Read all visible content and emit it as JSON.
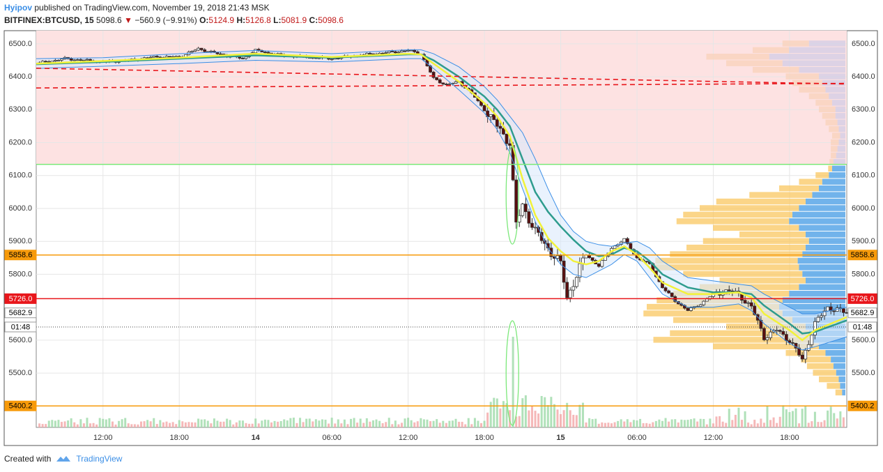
{
  "header": {
    "author": "Hyipov",
    "published_text": "published on TradingView.com, November 19, 2018 21:43 MSK",
    "symbol": "BITFINEX:BTCUSD, 15",
    "last": "5098.6",
    "change": "−560.9 (−9.91%)",
    "o_label": "O:",
    "o": "5124.9",
    "h_label": "H:",
    "h": "5126.8",
    "l_label": "L:",
    "l": "5081.9",
    "c_label": "C:",
    "c": "5098.6"
  },
  "footer": {
    "created_with": "Created with",
    "brand": "TradingView"
  },
  "colors": {
    "up": "#ffffff",
    "down": "#5a0f0f",
    "ema_fast": "#f2f23a",
    "ema_slow": "#2e9c8e",
    "band": "#3a8ee6",
    "zone": "#fde2e2",
    "profile_buy": "#f9c760",
    "profile_sell": "#58a6e8",
    "orange_level": "#f79a0a",
    "red_level": "#e8161b",
    "green_level": "#7ce87a"
  },
  "chart_data": {
    "type": "candlestick",
    "y_ticks": [
      6500,
      6400,
      6300,
      6200,
      6100,
      6000,
      5900,
      5800,
      5600,
      5500
    ],
    "y_tick_labels": [
      "6500.0",
      "6400.0",
      "6300.0",
      "6200.0",
      "6100.0",
      "6000.0",
      "5900.0",
      "5800.0",
      "5600.0",
      "5500.0"
    ],
    "x_labels": [
      "12:00",
      "18:00",
      "14",
      "06:00",
      "12:00",
      "18:00",
      "15",
      "06:00",
      "12:00",
      "18:00"
    ],
    "x_label_bold": [
      false,
      false,
      true,
      false,
      false,
      false,
      true,
      false,
      false,
      false
    ],
    "x_label_hours": [
      12,
      18,
      24,
      30,
      36,
      42,
      48,
      54,
      60,
      66
    ],
    "x_range_hours": [
      6.75,
      70.5
    ],
    "y_range": [
      5335,
      6540
    ],
    "price_badges": [
      {
        "text": "5858.6",
        "value": 5858.6,
        "color": "#f79a0a",
        "text_color": "#000000"
      },
      {
        "text": "5726.0",
        "value": 5726.0,
        "color": "#e8161b",
        "text_color": "#ffffff"
      },
      {
        "text": "5682.9",
        "value": 5682.9,
        "color": "#ffffff",
        "text_color": "#000000"
      },
      {
        "text": "01:48",
        "value": 5640,
        "color": "#ffffff",
        "text_color": "#000000"
      },
      {
        "text": "5400.2",
        "value": 5400.2,
        "color": "#f79a0a",
        "text_color": "#000000"
      }
    ],
    "levels": [
      {
        "name": "resistance-zone-bottom",
        "value": 6134,
        "color": "#7ce87a"
      },
      {
        "name": "orange-level",
        "value": 5858.6,
        "color": "#f79a0a"
      },
      {
        "name": "red-level",
        "value": 5726.0,
        "color": "#e8161b"
      },
      {
        "name": "orange-level-low",
        "value": 5400.2,
        "color": "#f79a0a"
      }
    ],
    "zone": {
      "from": 6134,
      "to": 6540
    },
    "trendlines": [
      {
        "x": [
          6.75,
          70.5
        ],
        "y": [
          6426,
          6378
        ]
      },
      {
        "x": [
          6.75,
          70.5
        ],
        "y": [
          6366,
          6380
        ]
      }
    ],
    "price_path": {
      "x": [
        6.75,
        9,
        12,
        14,
        16,
        18,
        19.5,
        21,
        23,
        24,
        26,
        28,
        30,
        32,
        34,
        36,
        37,
        38,
        39,
        40,
        41,
        42,
        43,
        44,
        44.5,
        45,
        46,
        47,
        48,
        48.5,
        49,
        50,
        51,
        52,
        53,
        54,
        55,
        56,
        57,
        58,
        59,
        60,
        61,
        62,
        63,
        64,
        65,
        66,
        67,
        68,
        69,
        70.5
      ],
      "y": [
        6440,
        6455,
        6445,
        6450,
        6460,
        6460,
        6485,
        6470,
        6455,
        6480,
        6465,
        6460,
        6455,
        6465,
        6472,
        6480,
        6470,
        6395,
        6375,
        6385,
        6350,
        6300,
        6250,
        6200,
        5950,
        6010,
        5930,
        5880,
        5830,
        5730,
        5775,
        5860,
        5825,
        5880,
        5905,
        5850,
        5830,
        5760,
        5720,
        5690,
        5710,
        5740,
        5750,
        5740,
        5700,
        5610,
        5630,
        5600,
        5540,
        5650,
        5700,
        5682
      ]
    },
    "ema_fast": {
      "x": [
        6.75,
        12,
        18,
        24,
        30,
        36,
        37,
        38,
        40,
        42,
        43,
        44,
        45,
        46,
        47,
        48,
        49,
        50,
        51,
        52,
        53,
        54,
        55,
        56,
        58,
        60,
        62,
        63,
        64,
        66,
        67,
        68,
        70.5
      ],
      "y": [
        6440,
        6448,
        6458,
        6470,
        6460,
        6470,
        6468,
        6440,
        6385,
        6320,
        6280,
        6220,
        6090,
        5980,
        5910,
        5870,
        5840,
        5830,
        5840,
        5870,
        5885,
        5860,
        5820,
        5775,
        5740,
        5740,
        5745,
        5730,
        5680,
        5630,
        5600,
        5630,
        5670
      ]
    },
    "ema_slow": {
      "x": [
        6.75,
        12,
        18,
        24,
        30,
        36,
        37,
        38,
        40,
        42,
        43,
        44,
        45,
        46,
        47,
        48,
        49,
        50,
        51,
        52,
        53,
        54,
        55,
        56,
        58,
        60,
        62,
        63,
        64,
        66,
        67,
        68,
        70.5
      ],
      "y": [
        6438,
        6445,
        6455,
        6465,
        6458,
        6468,
        6468,
        6450,
        6400,
        6340,
        6300,
        6250,
        6150,
        6050,
        5990,
        5945,
        5905,
        5870,
        5855,
        5860,
        5880,
        5870,
        5840,
        5800,
        5760,
        5745,
        5745,
        5740,
        5705,
        5650,
        5620,
        5625,
        5660
      ]
    },
    "band_upper": {
      "x": [
        6.75,
        12,
        18,
        24,
        30,
        36,
        37,
        38,
        40,
        42,
        43,
        44,
        45,
        46,
        47,
        48,
        49,
        50,
        51,
        52,
        53,
        54,
        55,
        56,
        58,
        60,
        62,
        63,
        64,
        66,
        67,
        68,
        70.5
      ],
      "y": [
        6455,
        6458,
        6470,
        6480,
        6470,
        6482,
        6482,
        6470,
        6430,
        6370,
        6330,
        6280,
        6230,
        6150,
        6060,
        5980,
        5930,
        5900,
        5890,
        5885,
        5895,
        5900,
        5880,
        5840,
        5790,
        5780,
        5770,
        5765,
        5740,
        5700,
        5680,
        5680,
        5700
      ]
    },
    "band_lower": {
      "x": [
        6.75,
        12,
        18,
        24,
        30,
        36,
        37,
        38,
        40,
        42,
        43,
        44,
        45,
        46,
        47,
        48,
        49,
        50,
        51,
        52,
        53,
        54,
        55,
        56,
        58,
        60,
        62,
        63,
        64,
        66,
        67,
        68,
        70.5
      ],
      "y": [
        6425,
        6432,
        6440,
        6450,
        6445,
        6455,
        6455,
        6425,
        6360,
        6290,
        6240,
        6170,
        6060,
        5960,
        5880,
        5830,
        5800,
        5790,
        5810,
        5830,
        5860,
        5840,
        5790,
        5740,
        5700,
        5700,
        5710,
        5690,
        5650,
        5590,
        5570,
        5580,
        5610
      ]
    },
    "volume_spike": {
      "x": 44.2,
      "value": 100
    },
    "volume_profile": {
      "prices": [
        6500,
        6480,
        6460,
        6440,
        6420,
        6400,
        6380,
        6360,
        6340,
        6320,
        6300,
        6280,
        6260,
        6240,
        6220,
        6200,
        6180,
        6160,
        6140,
        6120,
        6100,
        6080,
        6060,
        6040,
        6020,
        6000,
        5980,
        5960,
        5940,
        5920,
        5900,
        5880,
        5860,
        5840,
        5820,
        5800,
        5780,
        5760,
        5740,
        5720,
        5700,
        5680,
        5660,
        5640,
        5620,
        5600,
        5580,
        5560,
        5540,
        5520,
        5500,
        5480,
        5460,
        5440
      ],
      "buy": [
        40,
        55,
        95,
        85,
        70,
        50,
        45,
        40,
        30,
        25,
        25,
        20,
        18,
        15,
        12,
        12,
        10,
        8,
        6,
        6,
        20,
        35,
        60,
        95,
        135,
        150,
        165,
        170,
        130,
        100,
        160,
        180,
        200,
        215,
        220,
        180,
        130,
        150,
        175,
        190,
        200,
        210,
        180,
        120,
        210,
        240,
        160,
        60,
        45,
        40,
        35,
        30,
        20,
        10
      ],
      "sell": [
        55,
        85,
        115,
        95,
        70,
        40,
        35,
        30,
        25,
        20,
        15,
        15,
        12,
        10,
        8,
        10,
        12,
        14,
        18,
        20,
        25,
        35,
        40,
        50,
        60,
        70,
        80,
        85,
        70,
        60,
        55,
        60,
        65,
        72,
        70,
        65,
        60,
        70,
        85,
        95,
        100,
        95,
        80,
        60,
        55,
        50,
        40,
        30,
        22,
        18,
        14,
        10,
        8,
        5
      ]
    }
  }
}
